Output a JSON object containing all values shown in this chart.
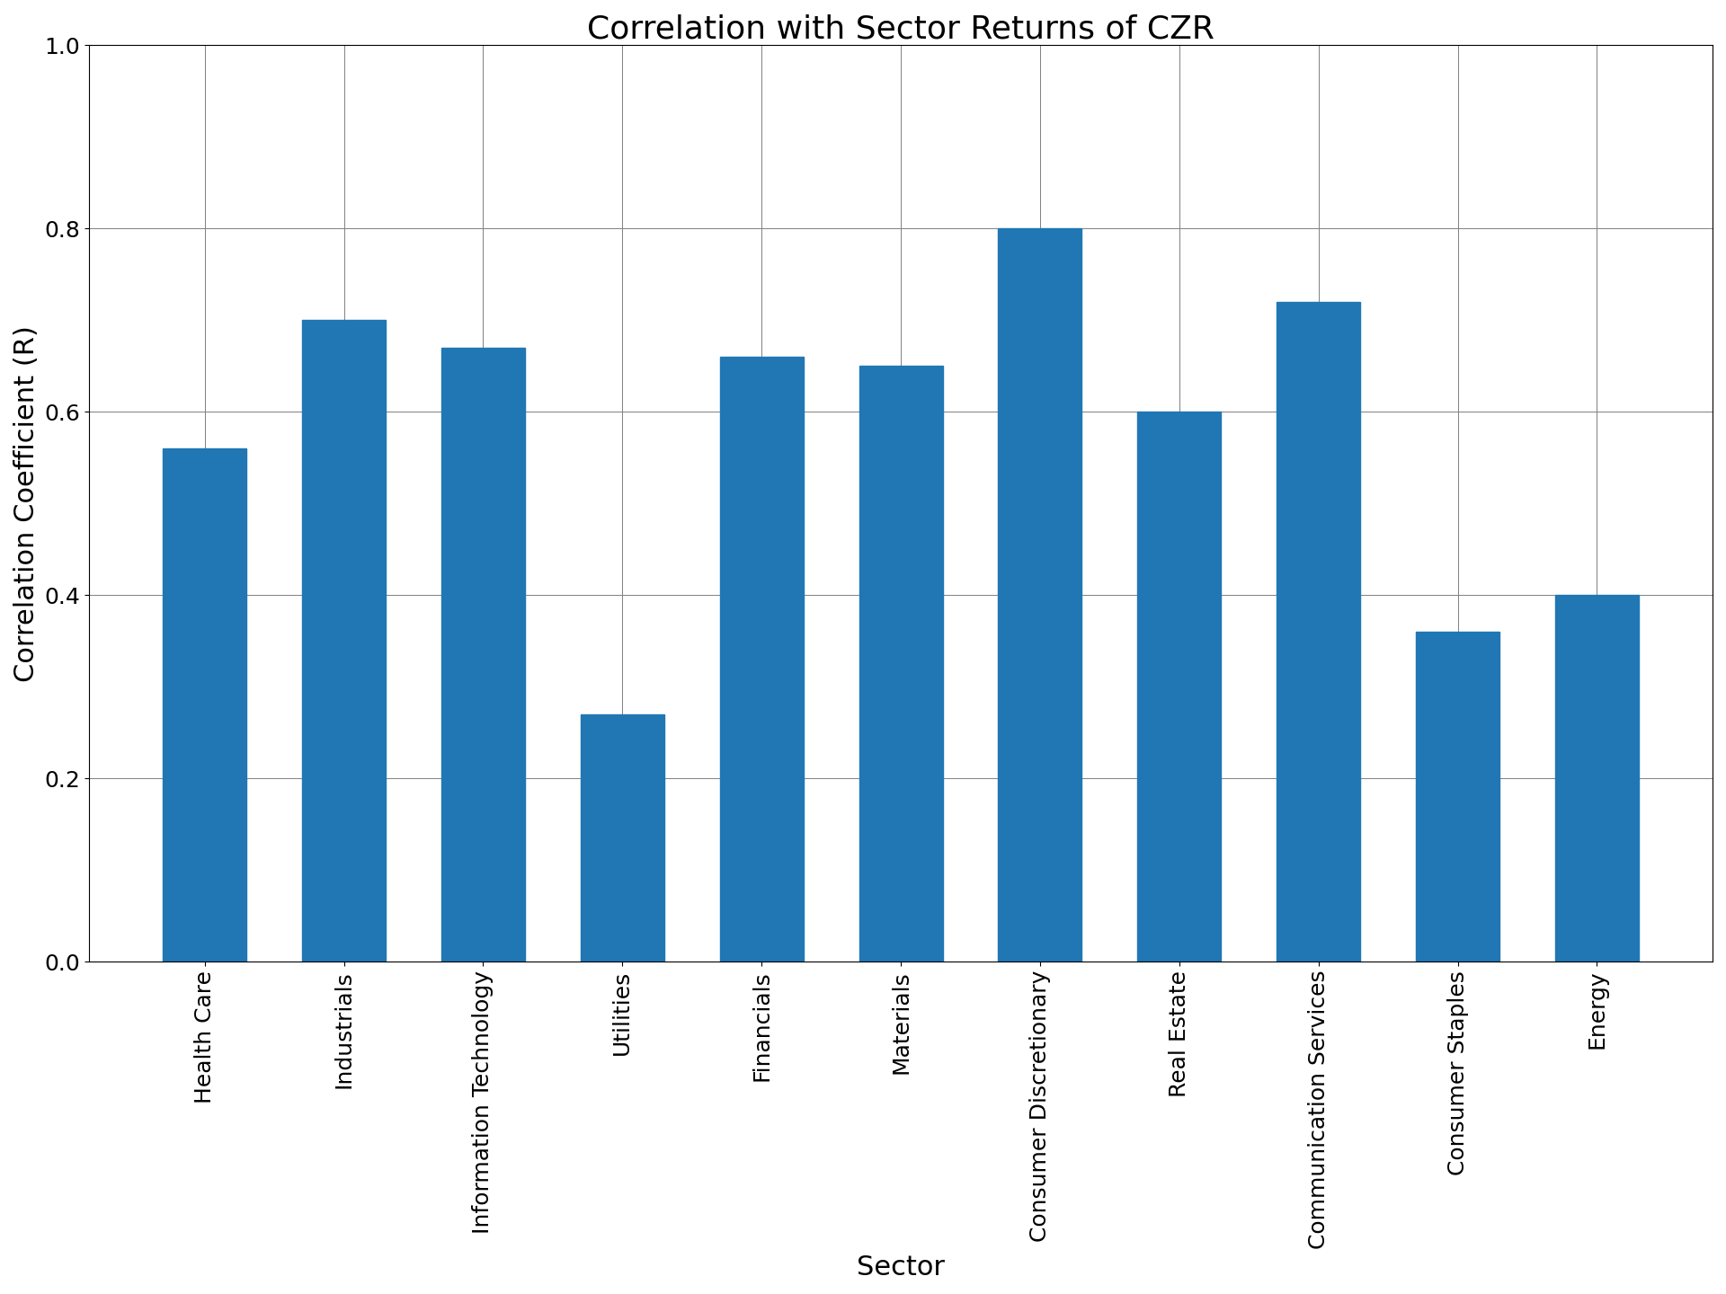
{
  "title": "Correlation with Sector Returns of CZR",
  "xlabel": "Sector",
  "ylabel": "Correlation Coefficient (R)",
  "categories": [
    "Health Care",
    "Industrials",
    "Information Technology",
    "Utilities",
    "Financials",
    "Materials",
    "Consumer Discretionary",
    "Real Estate",
    "Communication Services",
    "Consumer Staples",
    "Energy"
  ],
  "values": [
    0.56,
    0.7,
    0.67,
    0.27,
    0.66,
    0.65,
    0.8,
    0.6,
    0.72,
    0.36,
    0.4
  ],
  "bar_color": "#2077b4",
  "ylim": [
    0.0,
    1.0
  ],
  "yticks": [
    0.0,
    0.2,
    0.4,
    0.6,
    0.8,
    1.0
  ],
  "title_fontsize": 26,
  "label_fontsize": 22,
  "tick_fontsize": 18,
  "background_color": "#ffffff",
  "grid": true,
  "bar_width": 0.6,
  "xtick_rotation": 90,
  "xtick_ha": "center"
}
